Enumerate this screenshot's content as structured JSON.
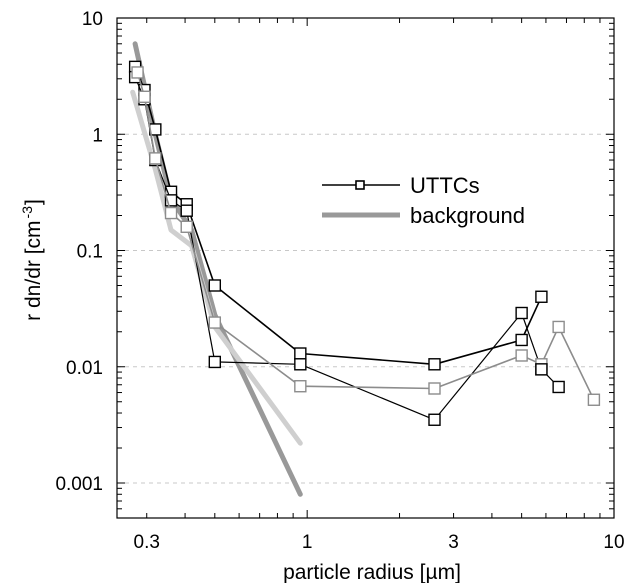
{
  "chart_data": {
    "type": "line",
    "title": "",
    "xlabel": "particle radius [µm]",
    "ylabel_main": "r dn/dr [cm",
    "ylabel_exp": "-3",
    "ylabel_close": "]",
    "x_scale": "log",
    "y_scale": "log",
    "xlim": [
      0.24,
      10
    ],
    "ylim": [
      0.0005,
      10
    ],
    "grid": "horizontal dashed",
    "x_ticks": [
      {
        "value": 0.3,
        "label": "0.3"
      },
      {
        "value": 1,
        "label": "1"
      },
      {
        "value": 3,
        "label": "3"
      },
      {
        "value": 10,
        "label": "10"
      }
    ],
    "y_ticks": [
      {
        "value": 10,
        "label": "10"
      },
      {
        "value": 1,
        "label": "1"
      },
      {
        "value": 0.1,
        "label": "0.1"
      },
      {
        "value": 0.01,
        "label": "0.01"
      },
      {
        "value": 0.001,
        "label": "0.001"
      }
    ],
    "legend": {
      "placement": "center-right",
      "entries": [
        {
          "label": "UTTCs",
          "style": "line-square",
          "color": "#000000"
        },
        {
          "label": "background",
          "style": "thick-line",
          "color": "#999999"
        }
      ]
    },
    "series": [
      {
        "name": "UTTCs",
        "kind": "line-square",
        "color": "#000000",
        "width": 1.6,
        "x": [
          0.275,
          0.295,
          0.32,
          0.36,
          0.405,
          0.5,
          0.95,
          2.6,
          5.0,
          5.8
        ],
        "y": [
          3.8,
          2.4,
          1.1,
          0.32,
          0.25,
          0.05,
          0.013,
          0.0105,
          0.017,
          0.04
        ]
      },
      {
        "name": "",
        "kind": "line-square",
        "color": "#000000",
        "width": 1.2,
        "x": [
          0.275,
          0.295,
          0.32,
          0.36,
          0.405,
          0.5,
          0.95,
          2.6,
          5.0,
          5.8
        ],
        "y": [
          3.1,
          2.0,
          0.6,
          0.27,
          0.22,
          0.011,
          0.0105,
          0.0035,
          0.029,
          0.0095
        ]
      },
      {
        "name": "",
        "kind": "line-square",
        "color": "#8c8c8c",
        "width": 1.6,
        "x": [
          0.28,
          0.295,
          0.32,
          0.36,
          0.405,
          0.5,
          0.95,
          2.6,
          5.0,
          5.8,
          6.6,
          8.6
        ],
        "y": [
          3.4,
          2.1,
          0.62,
          0.21,
          0.16,
          0.024,
          0.0068,
          0.0065,
          0.0125,
          0.0105,
          0.022,
          0.0052
        ]
      },
      {
        "name": "",
        "kind": "line-square",
        "color": "#000000",
        "width": 1.2,
        "x": [
          5.8,
          6.6
        ],
        "y": [
          0.0095,
          0.0067
        ]
      },
      {
        "name": "background",
        "kind": "thick-line",
        "color": "#999999",
        "width": 5,
        "x": [
          0.275,
          0.32,
          0.36,
          0.42,
          0.5,
          0.95
        ],
        "y": [
          6.0,
          1.0,
          0.28,
          0.15,
          0.028,
          0.0008
        ]
      },
      {
        "name": "",
        "kind": "thick-line",
        "color": "#cfcfcf",
        "width": 5,
        "x": [
          0.27,
          0.32,
          0.36,
          0.42,
          0.5,
          0.95
        ],
        "y": [
          2.3,
          0.5,
          0.15,
          0.11,
          0.022,
          0.0022
        ]
      }
    ]
  }
}
